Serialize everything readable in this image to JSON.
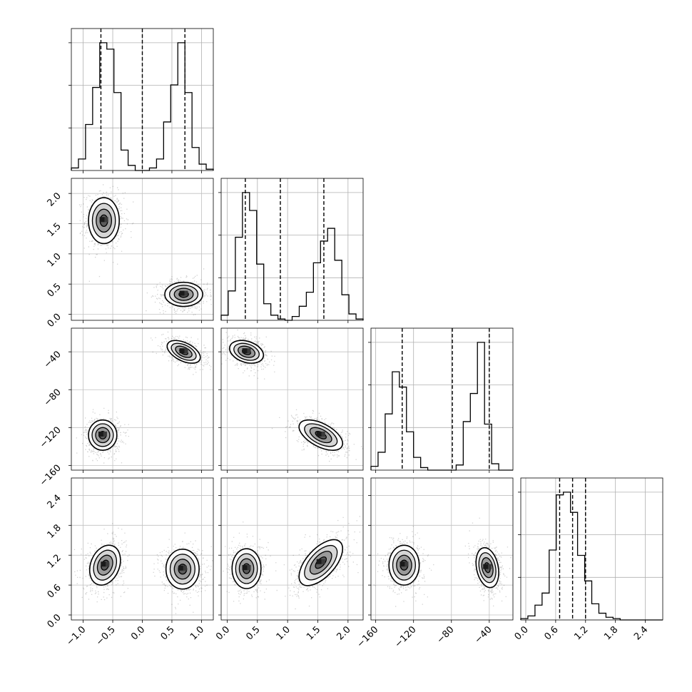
{
  "chart_data": {
    "type": "corner",
    "grid": true,
    "parameters": [
      {
        "range": [
          -1.2,
          1.2
        ],
        "ticks": [
          -1.0,
          -0.5,
          0.0,
          0.5,
          1.0
        ],
        "tick_labels": [
          "−1.0",
          "−0.5",
          "0.0",
          "0.5",
          "1.0"
        ],
        "quantiles": [
          -0.7,
          0.0,
          0.72
        ]
      },
      {
        "range": [
          -0.1,
          2.25
        ],
        "ticks": [
          0.0,
          0.5,
          1.0,
          1.5,
          2.0
        ],
        "tick_labels": [
          "0.0",
          "0.5",
          "1.0",
          "1.5",
          "2.0"
        ],
        "quantiles": [
          0.3,
          0.88,
          1.6
        ]
      },
      {
        "range": [
          -165,
          -15
        ],
        "ticks": [
          -160,
          -120,
          -80,
          -40
        ],
        "tick_labels": [
          "−160",
          "−120",
          "−80",
          "−40"
        ],
        "quantiles": [
          -132,
          -79,
          -40
        ]
      },
      {
        "range": [
          -0.1,
          2.75
        ],
        "ticks": [
          0.0,
          0.6,
          1.2,
          1.8,
          2.4
        ],
        "tick_labels": [
          "0.0",
          "0.6",
          "1.2",
          "1.8",
          "2.4"
        ],
        "quantiles": [
          0.68,
          0.94,
          1.2
        ]
      }
    ],
    "histograms": [
      {
        "param": 0,
        "bins": 20,
        "counts": [
          0.02,
          0.09,
          0.36,
          0.65,
          1.0,
          0.95,
          0.61,
          0.16,
          0.04,
          0.0,
          0.0,
          0.02,
          0.09,
          0.38,
          0.67,
          1.0,
          0.61,
          0.18,
          0.05,
          0.01
        ]
      },
      {
        "param": 1,
        "bins": 20,
        "counts": [
          0.04,
          0.23,
          0.65,
          1.0,
          0.86,
          0.44,
          0.13,
          0.04,
          0.01,
          0.0,
          0.03,
          0.11,
          0.22,
          0.45,
          0.62,
          0.72,
          0.47,
          0.2,
          0.05,
          0.01
        ]
      },
      {
        "param": 2,
        "bins": 20,
        "counts": [
          0.03,
          0.14,
          0.44,
          0.77,
          0.65,
          0.3,
          0.1,
          0.02,
          0.0,
          0.0,
          0.0,
          0.0,
          0.04,
          0.38,
          0.6,
          1.0,
          0.36,
          0.05,
          0.0,
          0.0
        ]
      },
      {
        "param": 3,
        "bins": 20,
        "counts": [
          0.01,
          0.03,
          0.11,
          0.2,
          0.52,
          0.93,
          0.95,
          0.8,
          0.48,
          0.29,
          0.12,
          0.05,
          0.02,
          0.01,
          0.0,
          0.0,
          0.0,
          0.0,
          0.0,
          0.0
        ]
      }
    ],
    "pairs": [
      {
        "x": 0,
        "y": 1,
        "modes": [
          {
            "mx": -0.65,
            "my": 1.55,
            "sx": 0.13,
            "sy": 0.19,
            "rho": 0.0
          },
          {
            "mx": 0.7,
            "my": 0.33,
            "sx": 0.16,
            "sy": 0.1,
            "rho": 0.0
          }
        ]
      },
      {
        "x": 0,
        "y": 2,
        "modes": [
          {
            "mx": -0.67,
            "my": -128,
            "sx": 0.12,
            "sy": 8,
            "rho": 0.0
          },
          {
            "mx": 0.7,
            "my": -40,
            "sx": 0.14,
            "sy": 6,
            "rho": -0.5
          }
        ]
      },
      {
        "x": 1,
        "y": 2,
        "modes": [
          {
            "mx": 0.32,
            "my": -40,
            "sx": 0.14,
            "sy": 6,
            "rho": -0.3
          },
          {
            "mx": 1.55,
            "my": -128,
            "sx": 0.18,
            "sy": 8,
            "rho": -0.55
          }
        ]
      },
      {
        "x": 0,
        "y": 3,
        "modes": [
          {
            "mx": -0.63,
            "my": 1.0,
            "sx": 0.13,
            "sy": 0.2,
            "rho": 0.25
          },
          {
            "mx": 0.68,
            "my": 0.92,
            "sx": 0.14,
            "sy": 0.2,
            "rho": 0.0
          }
        ]
      },
      {
        "x": 1,
        "y": 3,
        "modes": [
          {
            "mx": 0.32,
            "my": 0.93,
            "sx": 0.12,
            "sy": 0.2,
            "rho": 0.0
          },
          {
            "mx": 1.55,
            "my": 1.05,
            "sx": 0.18,
            "sy": 0.23,
            "rho": 0.6
          }
        ]
      },
      {
        "x": 2,
        "y": 3,
        "modes": [
          {
            "mx": -130,
            "my": 1.0,
            "sx": 8,
            "sy": 0.2,
            "rho": 0.0
          },
          {
            "mx": -42,
            "my": 0.95,
            "sx": 6,
            "sy": 0.2,
            "rho": -0.25
          }
        ]
      }
    ],
    "contour_levels_sigma": [
      0.5,
      1.0,
      1.5,
      2.0
    ]
  }
}
